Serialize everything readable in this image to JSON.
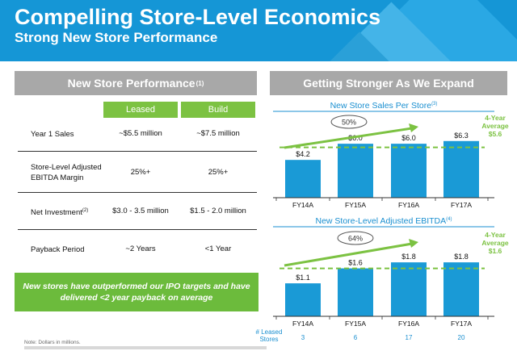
{
  "header": {
    "title": "Compelling Store-Level Economics",
    "subtitle": "Strong New Store Performance"
  },
  "left_panel": {
    "heading": "New Store Performance",
    "heading_sup": "(1)",
    "columns": [
      "Leased",
      "Build"
    ],
    "rows": [
      {
        "label_lines": [
          "Year 1 Sales"
        ],
        "sup": "",
        "leased": "~$5.5 million",
        "build": "~$7.5 million"
      },
      {
        "label_lines": [
          "Store-Level Adjusted",
          "EBITDA Margin"
        ],
        "sup": "",
        "leased": "25%+",
        "build": "25%+"
      },
      {
        "label_lines": [
          "Net Investment"
        ],
        "sup": "(2)",
        "leased": "$3.0 - 3.5 million",
        "build": "$1.5 - 2.0 million"
      },
      {
        "label_lines": [
          "Payback Period"
        ],
        "sup": "",
        "leased": "~2 Years",
        "build": "<1 Year"
      }
    ],
    "callout": "New stores have outperformed our IPO targets and have delivered <2 year payback on average",
    "footnote": "Note: Dollars in millions."
  },
  "right_panel": {
    "heading": "Getting Stronger As We Expand",
    "stores_label_lines": [
      "# Leased",
      "Stores"
    ]
  },
  "colors": {
    "header_blue": "#1596d6",
    "bar_blue": "#1a9ad6",
    "green": "#7cc242",
    "title_blue": "#1a8fd0",
    "grey_header": "#a8a8a8"
  },
  "chart_data": [
    {
      "type": "bar",
      "title": "New Store Sales Per Store",
      "title_sup": "(3)",
      "categories": [
        "FY14A",
        "FY15A",
        "FY16A",
        "FY17A"
      ],
      "values": [
        4.2,
        6.0,
        6.0,
        6.3
      ],
      "data_labels": [
        "$4.2",
        "$6.0",
        "$6.0",
        "$6.3"
      ],
      "ylim": [
        0,
        7
      ],
      "growth_label": "50%",
      "average": {
        "value": 5.6,
        "label_lines": [
          "4-Year",
          "Average",
          "$5.6"
        ]
      }
    },
    {
      "type": "bar",
      "title": "New Store-Level Adjusted EBITDA",
      "title_sup": "(4)",
      "categories": [
        "FY14A",
        "FY15A",
        "FY16A",
        "FY17A"
      ],
      "values": [
        1.1,
        1.6,
        1.8,
        1.8
      ],
      "data_labels": [
        "$1.1",
        "$1.6",
        "$1.8",
        "$1.8"
      ],
      "ylim": [
        0,
        2.1
      ],
      "growth_label": "64%",
      "average": {
        "value": 1.6,
        "label_lines": [
          "4-Year",
          "Average",
          "$1.6"
        ]
      },
      "leased_stores": [
        "3",
        "6",
        "17",
        "20"
      ]
    }
  ]
}
